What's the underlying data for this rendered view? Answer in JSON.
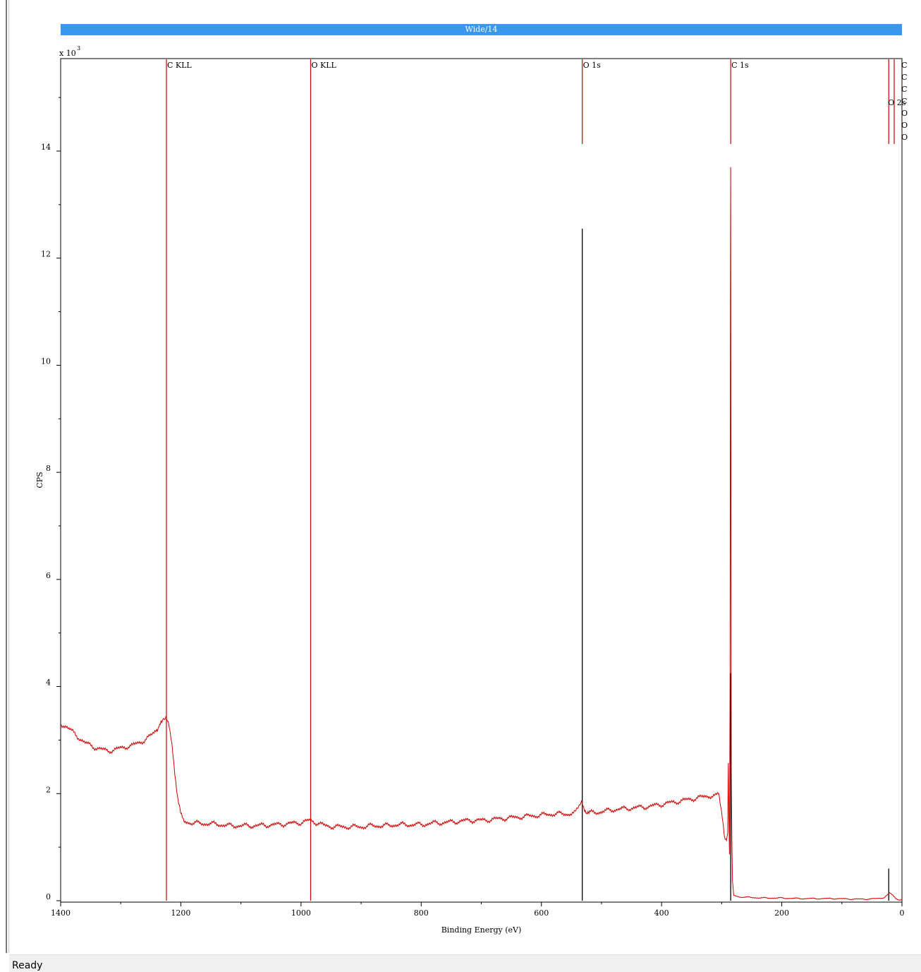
{
  "chart_data": {
    "type": "line",
    "title": "Wide/14",
    "xlabel": "Binding Energy (eV)",
    "ylabel": "CPS",
    "y_multiplier_label": "x 10",
    "y_multiplier_exp": "3",
    "xlim": [
      1400,
      0
    ],
    "ylim": [
      0,
      15.8
    ],
    "x_ticks": [
      1400,
      1200,
      1000,
      800,
      600,
      400,
      200,
      0
    ],
    "y_ticks": [
      0,
      2,
      4,
      6,
      8,
      10,
      12,
      14
    ],
    "series": [
      {
        "color": "#cc0000",
        "points": [
          [
            1400,
            3.3
          ],
          [
            1390,
            3.25
          ],
          [
            1380,
            3.15
          ],
          [
            1370,
            3.05
          ],
          [
            1360,
            2.95
          ],
          [
            1350,
            2.9
          ],
          [
            1340,
            2.85
          ],
          [
            1330,
            2.82
          ],
          [
            1320,
            2.8
          ],
          [
            1310,
            2.82
          ],
          [
            1300,
            2.85
          ],
          [
            1290,
            2.88
          ],
          [
            1280,
            2.9
          ],
          [
            1270,
            2.95
          ],
          [
            1260,
            3.0
          ],
          [
            1250,
            3.08
          ],
          [
            1240,
            3.2
          ],
          [
            1232,
            3.32
          ],
          [
            1225,
            3.4
          ],
          [
            1220,
            3.3
          ],
          [
            1215,
            2.95
          ],
          [
            1210,
            2.4
          ],
          [
            1205,
            1.9
          ],
          [
            1200,
            1.6
          ],
          [
            1195,
            1.48
          ],
          [
            1180,
            1.45
          ],
          [
            1160,
            1.44
          ],
          [
            1140,
            1.43
          ],
          [
            1120,
            1.4
          ],
          [
            1100,
            1.4
          ],
          [
            1080,
            1.4
          ],
          [
            1060,
            1.41
          ],
          [
            1040,
            1.42
          ],
          [
            1020,
            1.44
          ],
          [
            1000,
            1.46
          ],
          [
            985,
            1.5
          ],
          [
            975,
            1.46
          ],
          [
            960,
            1.4
          ],
          [
            940,
            1.38
          ],
          [
            920,
            1.38
          ],
          [
            900,
            1.38
          ],
          [
            880,
            1.4
          ],
          [
            860,
            1.4
          ],
          [
            840,
            1.42
          ],
          [
            820,
            1.42
          ],
          [
            800,
            1.42
          ],
          [
            780,
            1.45
          ],
          [
            760,
            1.46
          ],
          [
            740,
            1.48
          ],
          [
            720,
            1.5
          ],
          [
            700,
            1.5
          ],
          [
            680,
            1.52
          ],
          [
            660,
            1.54
          ],
          [
            640,
            1.56
          ],
          [
            620,
            1.58
          ],
          [
            600,
            1.6
          ],
          [
            580,
            1.62
          ],
          [
            560,
            1.62
          ],
          [
            545,
            1.63
          ],
          [
            533,
            1.82
          ],
          [
            528,
            1.68
          ],
          [
            520,
            1.64
          ],
          [
            500,
            1.66
          ],
          [
            480,
            1.7
          ],
          [
            460,
            1.72
          ],
          [
            440,
            1.74
          ],
          [
            420,
            1.76
          ],
          [
            400,
            1.8
          ],
          [
            380,
            1.84
          ],
          [
            360,
            1.88
          ],
          [
            340,
            1.92
          ],
          [
            320,
            1.96
          ],
          [
            310,
            1.95
          ],
          [
            305,
            2.0
          ],
          [
            300,
            1.65
          ],
          [
            295,
            1.2
          ],
          [
            292,
            1.1
          ],
          [
            290,
            1.3
          ],
          [
            289,
            2.6
          ],
          [
            288,
            1.5
          ],
          [
            287,
            0.85
          ],
          [
            286,
            4.2
          ],
          [
            285.5,
            11.3
          ],
          [
            285,
            13.65
          ],
          [
            284.5,
            6.3
          ],
          [
            284,
            2.4
          ],
          [
            283,
            1.2
          ],
          [
            282,
            0.4
          ],
          [
            280,
            0.1
          ],
          [
            270,
            0.07
          ],
          [
            250,
            0.06
          ],
          [
            230,
            0.05
          ],
          [
            200,
            0.05
          ],
          [
            170,
            0.04
          ],
          [
            140,
            0.04
          ],
          [
            110,
            0.04
          ],
          [
            80,
            0.03
          ],
          [
            60,
            0.03
          ],
          [
            40,
            0.04
          ],
          [
            30,
            0.06
          ],
          [
            24,
            0.12
          ],
          [
            20,
            0.14
          ],
          [
            15,
            0.1
          ],
          [
            10,
            0.04
          ],
          [
            5,
            0.02
          ],
          [
            0,
            0.02
          ]
        ]
      }
    ],
    "annotations": [
      {
        "label": "C KLL",
        "x": 1224,
        "color": "#cc0000",
        "full": true
      },
      {
        "label": "O KLL",
        "x": 984,
        "color": "#cc0000",
        "full": true
      },
      {
        "label": "O 1s",
        "x": 532,
        "color": "#cc0000",
        "full": false
      },
      {
        "label": "C 1s",
        "x": 285,
        "color": "#cc0000",
        "full": false
      },
      {
        "label": "O 2s",
        "x": 22,
        "color": "#cc0000",
        "full": false
      }
    ],
    "peak_markers": [
      {
        "x": 532,
        "top": 12.55
      },
      {
        "x": 285,
        "top": 4.25
      },
      {
        "x": 22,
        "top": 0.6
      }
    ],
    "edge_labels": [
      "C",
      "C",
      "C",
      "C",
      "O",
      "O",
      "O"
    ]
  },
  "status": {
    "text": "Ready"
  }
}
